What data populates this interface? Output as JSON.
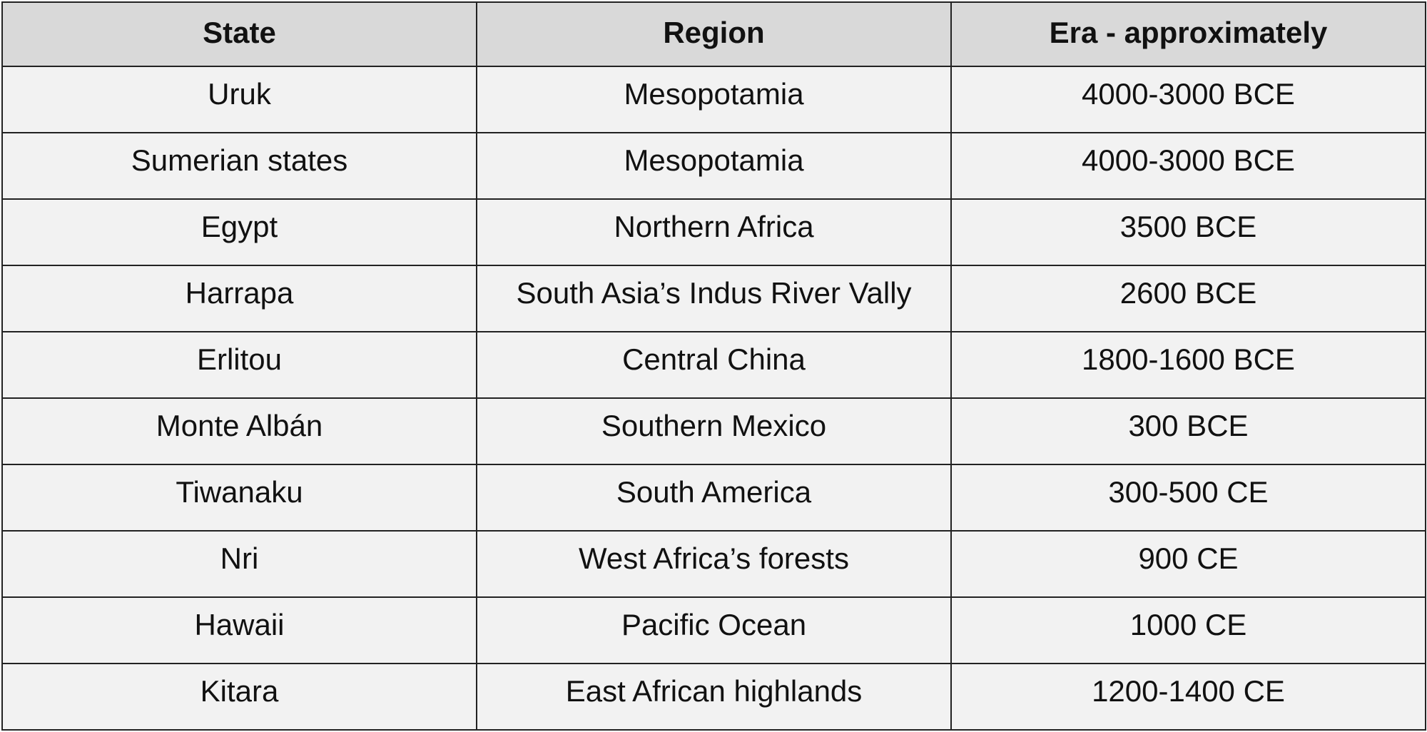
{
  "table": {
    "header": [
      "State",
      "Region",
      "Era - approximately"
    ],
    "rows": [
      [
        "Uruk",
        "Mesopotamia",
        "4000-3000 BCE"
      ],
      [
        "Sumerian states",
        "Mesopotamia",
        "4000-3000 BCE"
      ],
      [
        "Egypt",
        "Northern Africa",
        "3500 BCE"
      ],
      [
        "Harrapa",
        "South Asia’s Indus River Vally",
        "2600 BCE"
      ],
      [
        "Erlitou",
        "Central China",
        "1800-1600 BCE"
      ],
      [
        "Monte Albán",
        "Southern Mexico",
        "300 BCE"
      ],
      [
        "Tiwanaku",
        "South America",
        "300-500 CE"
      ],
      [
        "Nri",
        "West Africa’s forests",
        "900 CE"
      ],
      [
        "Hawaii",
        "Pacific Ocean",
        "1000 CE"
      ],
      [
        "Kitara",
        "East African highlands",
        "1200-1400 CE"
      ]
    ]
  }
}
